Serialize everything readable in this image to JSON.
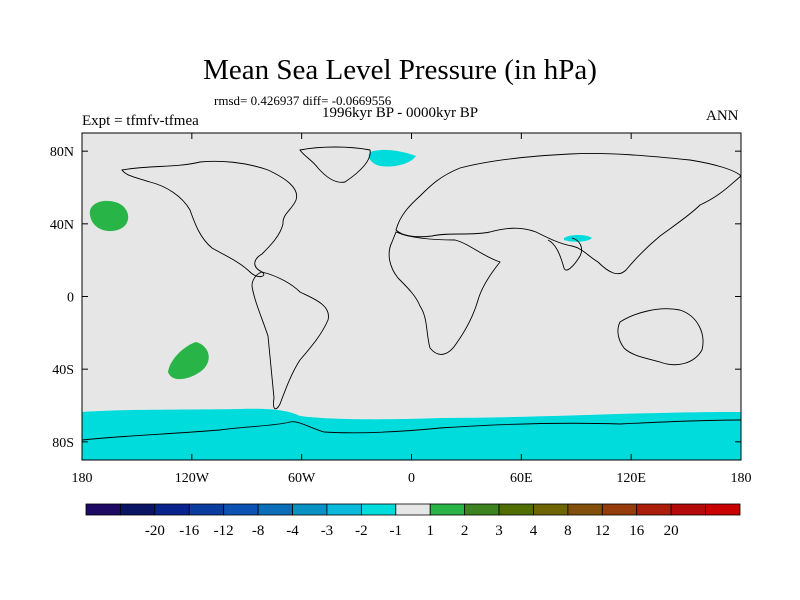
{
  "header": {
    "title": "Mean Sea Level Pressure (in hPa)",
    "stats": "rmsd= 0.426937 diff= -0.0669556",
    "period": "1996kyr BP - 0000kyr BP",
    "experiment": "Expt = tfmfv-tfmea",
    "season": "ANN"
  },
  "map": {
    "background_color": "#e6e6e6",
    "lon_ticks": [
      {
        "label": "180",
        "lon": -180
      },
      {
        "label": "120W",
        "lon": -120
      },
      {
        "label": "60W",
        "lon": -60
      },
      {
        "label": "0",
        "lon": 0
      },
      {
        "label": "60E",
        "lon": 60
      },
      {
        "label": "120E",
        "lon": 120
      },
      {
        "label": "180",
        "lon": 180
      }
    ],
    "lat_ticks": [
      {
        "label": "80N",
        "lat": 80
      },
      {
        "label": "40N",
        "lat": 40
      },
      {
        "label": "0",
        "lat": 0
      },
      {
        "label": "40S",
        "lat": -40
      },
      {
        "label": "80S",
        "lat": -80
      }
    ],
    "anomaly_regions": [
      {
        "name": "north-pacific-positive",
        "level": "1 to 2",
        "color": "#28b446"
      },
      {
        "name": "south-pacific-positive",
        "level": "1 to 2",
        "color": "#28b446"
      },
      {
        "name": "greenland-sea-negative",
        "level": "-2 to -1",
        "color": "#00dcdc"
      },
      {
        "name": "arabian-sea-negative",
        "level": "-2 to -1",
        "color": "#00dcdc"
      },
      {
        "name": "southern-ocean-negative",
        "level": "-2 to -1",
        "color": "#00dcdc"
      }
    ]
  },
  "colorbar": {
    "colors": [
      "#1e0a64",
      "#0a1464",
      "#08248c",
      "#0a3ca0",
      "#0c52b4",
      "#0a6eb8",
      "#0891c3",
      "#0ab9dc",
      "#00dcdc",
      "#e6e6e6",
      "#28b446",
      "#3c821e",
      "#506e00",
      "#6e6400",
      "#82500a",
      "#963c0a",
      "#aa1e0a",
      "#b40a0a",
      "#c80000"
    ],
    "labels": [
      "-20",
      "-16",
      "-12",
      "-8",
      "-4",
      "-3",
      "-2",
      "-1",
      "1",
      "2",
      "3",
      "4",
      "8",
      "12",
      "16",
      "20"
    ]
  }
}
